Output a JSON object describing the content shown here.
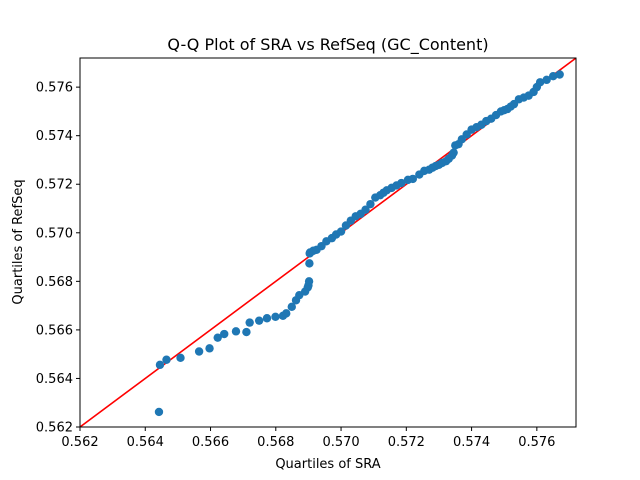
{
  "chart_data": {
    "type": "scatter",
    "title": "Q-Q Plot of SRA vs RefSeq (GC_Content)",
    "xlabel": "Quartiles of SRA",
    "ylabel": "Quartiles of RefSeq",
    "xlim": [
      0.562,
      0.5772
    ],
    "ylim": [
      0.562,
      0.5772
    ],
    "x_ticks": [
      "0.562",
      "0.564",
      "0.566",
      "0.568",
      "0.570",
      "0.572",
      "0.574",
      "0.576"
    ],
    "y_ticks": [
      "0.562",
      "0.564",
      "0.566",
      "0.568",
      "0.570",
      "0.572",
      "0.574",
      "0.576"
    ],
    "grid": false,
    "colors": {
      "points": "#1f77b4",
      "reference_line": "#ff0000"
    },
    "reference_line": {
      "type": "y=x"
    },
    "series": [
      {
        "x": [
          0.56442,
          0.56445,
          0.56465,
          0.56508,
          0.56565,
          0.56597,
          0.56622,
          0.56642,
          0.56678,
          0.5671,
          0.5672,
          0.56749,
          0.56773,
          0.56799,
          0.56822,
          0.56832,
          0.56849,
          0.56862,
          0.56872,
          0.5689,
          0.56898,
          0.569,
          0.56902,
          0.56903,
          0.56904,
          0.56905,
          0.56915,
          0.56925,
          0.5694,
          0.56955,
          0.56972,
          0.56985,
          0.57,
          0.57015,
          0.5703,
          0.57045,
          0.5706,
          0.57075,
          0.5709,
          0.57105,
          0.5712,
          0.5713,
          0.5714,
          0.57155,
          0.5717,
          0.57185,
          0.57205,
          0.5722,
          0.5724,
          0.57255,
          0.5727,
          0.5728,
          0.5729,
          0.573,
          0.5731,
          0.57322,
          0.5733,
          0.5734,
          0.57345,
          0.5735,
          0.5736,
          0.5737,
          0.57385,
          0.574,
          0.57415,
          0.5743,
          0.57445,
          0.5746,
          0.57475,
          0.5749,
          0.575,
          0.5751,
          0.5752,
          0.5753,
          0.57545,
          0.5756,
          0.57575,
          0.5759,
          0.576,
          0.5761,
          0.5763,
          0.5765,
          0.5767
        ],
        "y": [
          0.56262,
          0.56456,
          0.56477,
          0.56485,
          0.56511,
          0.56524,
          0.56568,
          0.56583,
          0.56594,
          0.56591,
          0.5663,
          0.56638,
          0.56648,
          0.56654,
          0.56658,
          0.56668,
          0.56695,
          0.56722,
          0.56743,
          0.56758,
          0.56775,
          0.56783,
          0.568,
          0.56874,
          0.56915,
          0.56919,
          0.56926,
          0.5693,
          0.56945,
          0.56965,
          0.56978,
          0.56993,
          0.57005,
          0.5703,
          0.5705,
          0.57068,
          0.57078,
          0.57095,
          0.57118,
          0.57145,
          0.57155,
          0.57165,
          0.57175,
          0.57185,
          0.57195,
          0.57205,
          0.57218,
          0.57222,
          0.5724,
          0.57255,
          0.5726,
          0.57268,
          0.57275,
          0.5728,
          0.57288,
          0.57295,
          0.57305,
          0.57318,
          0.5733,
          0.5736,
          0.57365,
          0.57385,
          0.57405,
          0.57425,
          0.57435,
          0.57445,
          0.5746,
          0.5747,
          0.57485,
          0.575,
          0.57505,
          0.5751,
          0.5752,
          0.5753,
          0.5755,
          0.57557,
          0.57565,
          0.5758,
          0.576,
          0.5762,
          0.5763,
          0.57645,
          0.57652
        ]
      }
    ]
  }
}
